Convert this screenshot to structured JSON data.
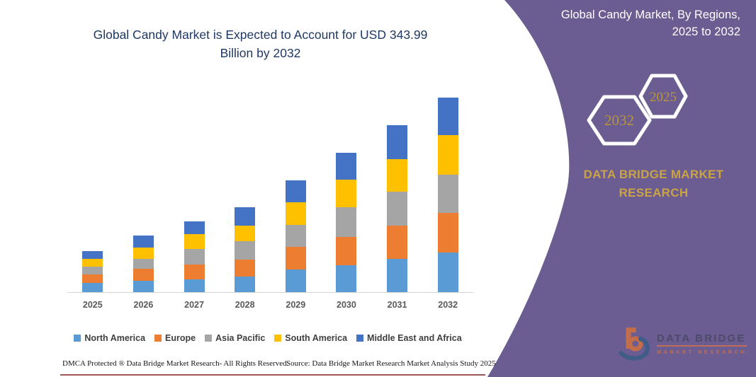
{
  "chart": {
    "title_lines": [
      "Global Candy Market is Expected to Account for USD 343.99",
      "Billion by 2032"
    ],
    "title_color": "#1f3864"
  },
  "chart_data": {
    "type": "bar",
    "stacked": true,
    "title": "Global Candy Market is Expected to Account for USD 343.99 Billion by 2032",
    "unit": "USD Billion",
    "categories": [
      "2025",
      "2026",
      "2027",
      "2028",
      "2029",
      "2030",
      "2031",
      "2032"
    ],
    "series": [
      {
        "name": "North America",
        "color": "#5B9BD5",
        "values": [
          16,
          20,
          23,
          28,
          40,
          48,
          59,
          70
        ]
      },
      {
        "name": "Europe",
        "color": "#ED7D31",
        "values": [
          15,
          21,
          26,
          29,
          40,
          50,
          59,
          70
        ]
      },
      {
        "name": "Asia Pacific",
        "color": "#A5A5A5",
        "values": [
          14,
          18,
          27,
          33,
          39,
          52,
          59,
          68
        ]
      },
      {
        "name": "South America",
        "color": "#FFC000",
        "values": [
          14,
          20,
          26,
          27,
          40,
          49,
          58,
          70
        ]
      },
      {
        "name": "Middle East and Africa",
        "color": "#4472C4",
        "values": [
          14,
          21,
          23,
          33,
          38,
          47,
          60,
          65.99
        ]
      }
    ],
    "totals": [
      73,
      100,
      125,
      150,
      197,
      246,
      295,
      343.99
    ],
    "ylim": [
      0,
      360
    ],
    "grid": false,
    "legend_position": "bottom",
    "axis_line_color": "#d6d6d6",
    "xtick_color": "#595959"
  },
  "side_panel": {
    "title_lines": [
      "Global Candy Market, By Regions,",
      "2025 to 2032"
    ],
    "hexagons": [
      {
        "year": "2032"
      },
      {
        "year": "2025"
      }
    ],
    "brand_lines": [
      "DATA BRIDGE MARKET",
      "RESEARCH"
    ],
    "logo": {
      "name": "DATA BRIDGE",
      "subtitle": "MARKET RESEARCH"
    },
    "colors": {
      "panel": "#6b5c91",
      "gold": "#c9a345",
      "hex_year": "#b9953c"
    }
  },
  "footer": {
    "left": "DMCA Protected ® Data Bridge Market Research-  All Rights Reserved.",
    "right": "Source: Data Bridge Market Research  Market Analysis Study 2025"
  }
}
